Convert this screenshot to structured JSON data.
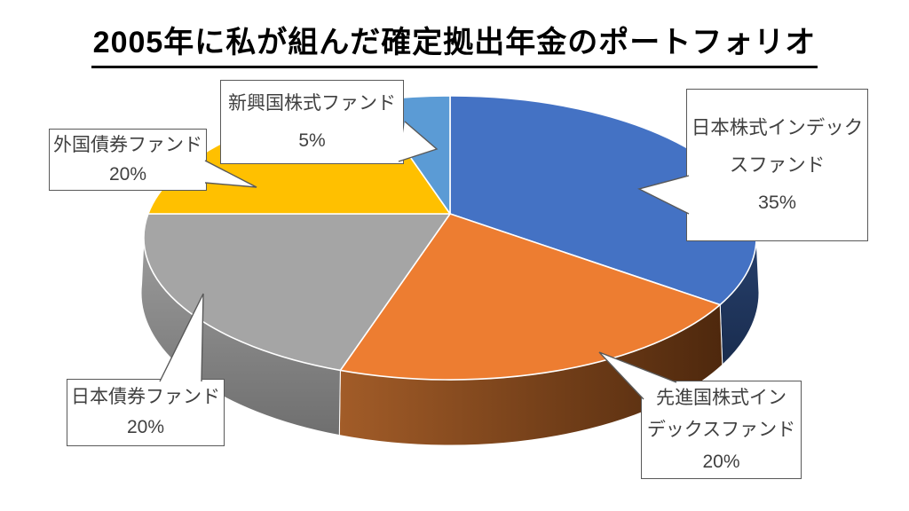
{
  "page": {
    "background": "#FFFFFF"
  },
  "title": {
    "text": "2005年に私が組んだ確定拠出年金のポートフォリオ",
    "underlined": true,
    "color": "#000000"
  },
  "chart_data": {
    "type": "pie",
    "projection": "3d",
    "title": "2005年に私が組んだ確定拠出年金のポートフォリオ",
    "unit": "%",
    "total": 100,
    "start_angle_deg": 0,
    "direction": "clockwise",
    "legend": "none",
    "labels_style": {
      "fill": "#FFFFFF",
      "border_color": "#595959",
      "text_color": "#404040"
    },
    "slices": [
      {
        "label": "日本株式インデックスファンド",
        "value": 35,
        "pct_text": "35%",
        "color": "#4472C4",
        "side_gradient": [
          "#27406C",
          "#192C4E"
        ],
        "label_lines": [
          "日本株式インデック",
          "スファンド"
        ]
      },
      {
        "label": "先進国株式インデックスファンド",
        "value": 20,
        "pct_text": "20%",
        "color": "#ED7D31",
        "side_gradient": [
          "#A25C28",
          "#4E280D"
        ],
        "label_lines": [
          "先進国株式イン",
          "デックスファンド"
        ]
      },
      {
        "label": "日本債券ファンド",
        "value": 20,
        "pct_text": "20%",
        "color": "#A5A5A5",
        "side_gradient": [
          "#9D9D9D",
          "#6F6F6F"
        ],
        "label_lines": [
          "日本債券ファンド"
        ]
      },
      {
        "label": "外国債券ファンド",
        "value": 20,
        "pct_text": "20%",
        "color": "#FFC000",
        "side_gradient": null,
        "label_lines": [
          "外国債券ファンド"
        ]
      },
      {
        "label": "新興国株式ファンド",
        "value": 5,
        "pct_text": "5%",
        "color": "#5B9BD5",
        "side_gradient": null,
        "label_lines": [
          "新興国株式ファンド"
        ]
      }
    ]
  }
}
